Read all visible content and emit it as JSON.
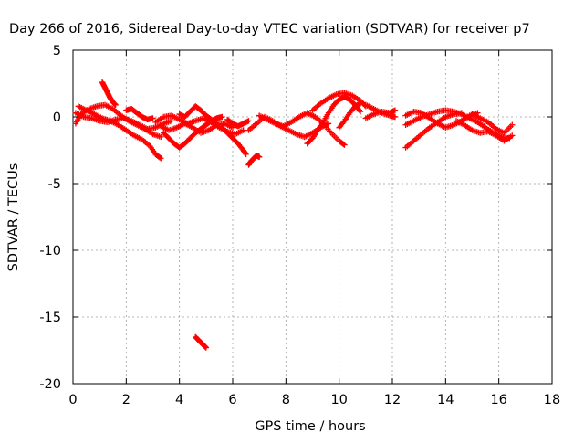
{
  "chart_data": {
    "type": "scatter",
    "title": "Day 266 of 2016, Sidereal Day-to-day VTEC variation (SDTVAR) for receiver p7",
    "xlabel": "GPS time / hours",
    "ylabel": "SDTVAR / TECUs",
    "xlim": [
      0,
      18
    ],
    "ylim": [
      -20,
      5
    ],
    "xticks": [
      "0",
      "2",
      "4",
      "6",
      "8",
      "10",
      "12",
      "14",
      "16",
      "18"
    ],
    "yticks": [
      "5",
      "0",
      "-5",
      "-10",
      "-15",
      "-20"
    ],
    "grid": true,
    "marker": "plus",
    "series_color": "#ff0000",
    "tracks": [
      {
        "name": "track-1",
        "points": [
          [
            0.1,
            -0.5
          ],
          [
            0.3,
            0.2
          ],
          [
            0.6,
            0.6
          ],
          [
            0.9,
            0.8
          ],
          [
            1.2,
            0.9
          ],
          [
            1.5,
            0.6
          ],
          [
            1.8,
            0.1
          ],
          [
            2.1,
            -0.3
          ],
          [
            2.4,
            -0.6
          ],
          [
            2.7,
            -0.9
          ],
          [
            3.0,
            -1.3
          ],
          [
            3.3,
            -1.5
          ]
        ]
      },
      {
        "name": "track-2",
        "points": [
          [
            0.1,
            0.3
          ],
          [
            0.4,
            0.0
          ],
          [
            0.7,
            -0.1
          ],
          [
            1.0,
            -0.3
          ],
          [
            1.3,
            -0.4
          ],
          [
            1.6,
            -0.2
          ],
          [
            1.9,
            -0.1
          ],
          [
            2.2,
            -0.3
          ],
          [
            2.5,
            -0.6
          ],
          [
            2.8,
            -0.9
          ],
          [
            3.1,
            -0.8
          ],
          [
            3.4,
            -0.5
          ],
          [
            3.7,
            -0.3
          ]
        ]
      },
      {
        "name": "track-3",
        "points": [
          [
            0.2,
            0.8
          ],
          [
            0.5,
            0.5
          ],
          [
            0.8,
            0.2
          ],
          [
            1.1,
            -0.1
          ],
          [
            1.4,
            -0.3
          ],
          [
            1.7,
            -0.6
          ],
          [
            2.0,
            -1.0
          ],
          [
            2.3,
            -1.4
          ],
          [
            2.6,
            -1.7
          ],
          [
            2.9,
            -2.2
          ],
          [
            3.1,
            -2.8
          ],
          [
            3.3,
            -3.1
          ]
        ]
      },
      {
        "name": "track-4",
        "points": [
          [
            1.1,
            2.6
          ],
          [
            1.2,
            2.2
          ],
          [
            1.3,
            1.8
          ],
          [
            1.4,
            1.4
          ],
          [
            1.5,
            1.1
          ],
          [
            1.6,
            0.9
          ]
        ]
      },
      {
        "name": "track-5",
        "points": [
          [
            2.0,
            0.5
          ],
          [
            2.2,
            0.6
          ],
          [
            2.4,
            0.3
          ],
          [
            2.6,
            0.0
          ],
          [
            2.8,
            -0.2
          ],
          [
            3.0,
            -0.1
          ]
        ]
      },
      {
        "name": "track-6",
        "points": [
          [
            3.1,
            -0.4
          ],
          [
            3.4,
            0.0
          ],
          [
            3.7,
            0.1
          ],
          [
            4.0,
            -0.2
          ],
          [
            4.3,
            -0.5
          ],
          [
            4.6,
            -0.3
          ],
          [
            4.9,
            -0.1
          ],
          [
            5.2,
            -0.4
          ],
          [
            5.5,
            -0.8
          ],
          [
            5.8,
            -1.1
          ],
          [
            6.1,
            -1.3
          ],
          [
            6.4,
            -1.0
          ]
        ]
      },
      {
        "name": "track-7",
        "points": [
          [
            3.3,
            -0.7
          ],
          [
            3.6,
            -1.0
          ],
          [
            3.9,
            -0.8
          ],
          [
            4.2,
            -0.5
          ],
          [
            4.5,
            -0.8
          ],
          [
            4.8,
            -1.2
          ],
          [
            5.1,
            -1.0
          ],
          [
            5.4,
            -0.6
          ],
          [
            5.7,
            -0.5
          ],
          [
            6.0,
            -0.8
          ]
        ]
      },
      {
        "name": "track-8",
        "points": [
          [
            3.4,
            -1.2
          ],
          [
            3.6,
            -1.6
          ],
          [
            3.8,
            -2.0
          ],
          [
            4.0,
            -2.3
          ],
          [
            4.2,
            -2.0
          ],
          [
            4.4,
            -1.6
          ],
          [
            4.6,
            -1.2
          ],
          [
            4.8,
            -0.9
          ],
          [
            5.0,
            -0.6
          ],
          [
            5.2,
            -0.3
          ],
          [
            5.4,
            -0.1
          ],
          [
            5.6,
            0.0
          ]
        ]
      },
      {
        "name": "track-9",
        "points": [
          [
            4.0,
            0.2
          ],
          [
            4.2,
            0.0
          ],
          [
            4.4,
            0.4
          ],
          [
            4.6,
            0.8
          ],
          [
            4.8,
            0.5
          ],
          [
            5.0,
            0.1
          ],
          [
            5.2,
            -0.2
          ],
          [
            5.4,
            -0.5
          ]
        ]
      },
      {
        "name": "track-10",
        "points": [
          [
            5.6,
            -0.8
          ],
          [
            5.8,
            -1.2
          ],
          [
            6.0,
            -1.6
          ],
          [
            6.2,
            -2.0
          ],
          [
            6.4,
            -2.5
          ],
          [
            6.5,
            -2.8
          ]
        ]
      },
      {
        "name": "track-11",
        "points": [
          [
            5.8,
            -0.2
          ],
          [
            6.0,
            -0.5
          ],
          [
            6.2,
            -0.7
          ],
          [
            6.4,
            -0.5
          ],
          [
            6.6,
            -0.3
          ]
        ]
      },
      {
        "name": "track-12",
        "points": [
          [
            6.6,
            -3.6
          ],
          [
            6.7,
            -3.3
          ],
          [
            6.8,
            -3.1
          ],
          [
            6.9,
            -2.9
          ],
          [
            7.0,
            -3.0
          ]
        ]
      },
      {
        "name": "track-13",
        "points": [
          [
            6.6,
            -1.0
          ],
          [
            6.9,
            -0.5
          ],
          [
            7.2,
            0.0
          ],
          [
            7.5,
            -0.3
          ],
          [
            7.8,
            -0.7
          ],
          [
            8.1,
            -1.0
          ],
          [
            8.4,
            -1.3
          ],
          [
            8.7,
            -1.5
          ],
          [
            9.0,
            -1.2
          ],
          [
            9.3,
            -0.8
          ],
          [
            9.6,
            -0.5
          ]
        ]
      },
      {
        "name": "track-14",
        "points": [
          [
            7.0,
            0.1
          ],
          [
            7.3,
            -0.2
          ],
          [
            7.6,
            -0.5
          ],
          [
            7.9,
            -0.7
          ],
          [
            8.2,
            -0.4
          ],
          [
            8.5,
            0.0
          ],
          [
            8.8,
            0.3
          ],
          [
            9.1,
            0.0
          ],
          [
            9.4,
            -0.5
          ],
          [
            9.7,
            -1.2
          ],
          [
            10.0,
            -1.8
          ],
          [
            10.2,
            -2.1
          ]
        ]
      },
      {
        "name": "track-15",
        "points": [
          [
            8.8,
            -2.0
          ],
          [
            9.0,
            -1.6
          ],
          [
            9.2,
            -1.0
          ],
          [
            9.4,
            -0.4
          ],
          [
            9.6,
            0.3
          ],
          [
            9.8,
            0.9
          ],
          [
            10.0,
            1.3
          ],
          [
            10.2,
            1.5
          ],
          [
            10.4,
            1.3
          ],
          [
            10.6,
            0.9
          ],
          [
            10.8,
            0.4
          ]
        ]
      },
      {
        "name": "track-16",
        "points": [
          [
            9.0,
            0.5
          ],
          [
            9.3,
            1.0
          ],
          [
            9.6,
            1.4
          ],
          [
            9.9,
            1.7
          ],
          [
            10.2,
            1.8
          ],
          [
            10.5,
            1.6
          ],
          [
            10.8,
            1.2
          ],
          [
            11.0,
            0.8
          ]
        ]
      },
      {
        "name": "track-17",
        "points": [
          [
            10.0,
            -0.8
          ],
          [
            10.2,
            -0.3
          ],
          [
            10.4,
            0.3
          ],
          [
            10.6,
            0.8
          ],
          [
            10.8,
            1.0
          ]
        ]
      },
      {
        "name": "track-18",
        "points": [
          [
            11.0,
            0.9
          ],
          [
            11.3,
            0.6
          ],
          [
            11.6,
            0.3
          ],
          [
            11.9,
            0.1
          ],
          [
            12.1,
            0.0
          ]
        ]
      },
      {
        "name": "track-19",
        "points": [
          [
            11.0,
            -0.1
          ],
          [
            11.3,
            0.2
          ],
          [
            11.6,
            0.4
          ],
          [
            11.9,
            0.3
          ],
          [
            12.1,
            0.5
          ]
        ]
      },
      {
        "name": "track-20",
        "points": [
          [
            12.5,
            -2.3
          ],
          [
            12.8,
            -1.8
          ],
          [
            13.1,
            -1.3
          ],
          [
            13.4,
            -0.8
          ],
          [
            13.7,
            -0.4
          ],
          [
            14.0,
            0.0
          ],
          [
            14.3,
            0.2
          ],
          [
            14.6,
            0.3
          ]
        ]
      },
      {
        "name": "track-21",
        "points": [
          [
            12.5,
            0.1
          ],
          [
            12.8,
            0.4
          ],
          [
            13.1,
            0.3
          ],
          [
            13.4,
            -0.1
          ],
          [
            13.7,
            -0.5
          ],
          [
            14.0,
            -0.8
          ],
          [
            14.3,
            -0.6
          ],
          [
            14.6,
            -0.3
          ],
          [
            14.9,
            0.1
          ],
          [
            15.2,
            0.3
          ]
        ]
      },
      {
        "name": "track-22",
        "points": [
          [
            12.5,
            -0.6
          ],
          [
            12.8,
            -0.3
          ],
          [
            13.1,
            0.0
          ],
          [
            13.4,
            0.2
          ],
          [
            13.7,
            0.4
          ],
          [
            14.0,
            0.5
          ],
          [
            14.3,
            0.4
          ],
          [
            14.6,
            0.2
          ],
          [
            14.9,
            -0.1
          ],
          [
            15.2,
            -0.4
          ],
          [
            15.5,
            -0.8
          ],
          [
            15.8,
            -1.2
          ],
          [
            16.1,
            -1.5
          ],
          [
            16.4,
            -1.6
          ]
        ]
      },
      {
        "name": "track-23",
        "points": [
          [
            14.4,
            -0.3
          ],
          [
            14.7,
            -0.6
          ],
          [
            15.0,
            -1.0
          ],
          [
            15.3,
            -1.2
          ],
          [
            15.6,
            -1.1
          ],
          [
            15.9,
            -1.4
          ],
          [
            16.2,
            -1.8
          ],
          [
            16.5,
            -1.4
          ]
        ]
      },
      {
        "name": "track-24",
        "points": [
          [
            15.0,
            0.2
          ],
          [
            15.3,
            -0.1
          ],
          [
            15.6,
            -0.4
          ],
          [
            15.9,
            -0.9
          ],
          [
            16.2,
            -1.2
          ],
          [
            16.5,
            -0.6
          ]
        ]
      },
      {
        "name": "track-25",
        "points": [
          [
            4.6,
            -16.5
          ],
          [
            4.7,
            -16.7
          ],
          [
            4.8,
            -16.9
          ],
          [
            4.9,
            -17.1
          ],
          [
            5.0,
            -17.3
          ]
        ]
      }
    ]
  }
}
